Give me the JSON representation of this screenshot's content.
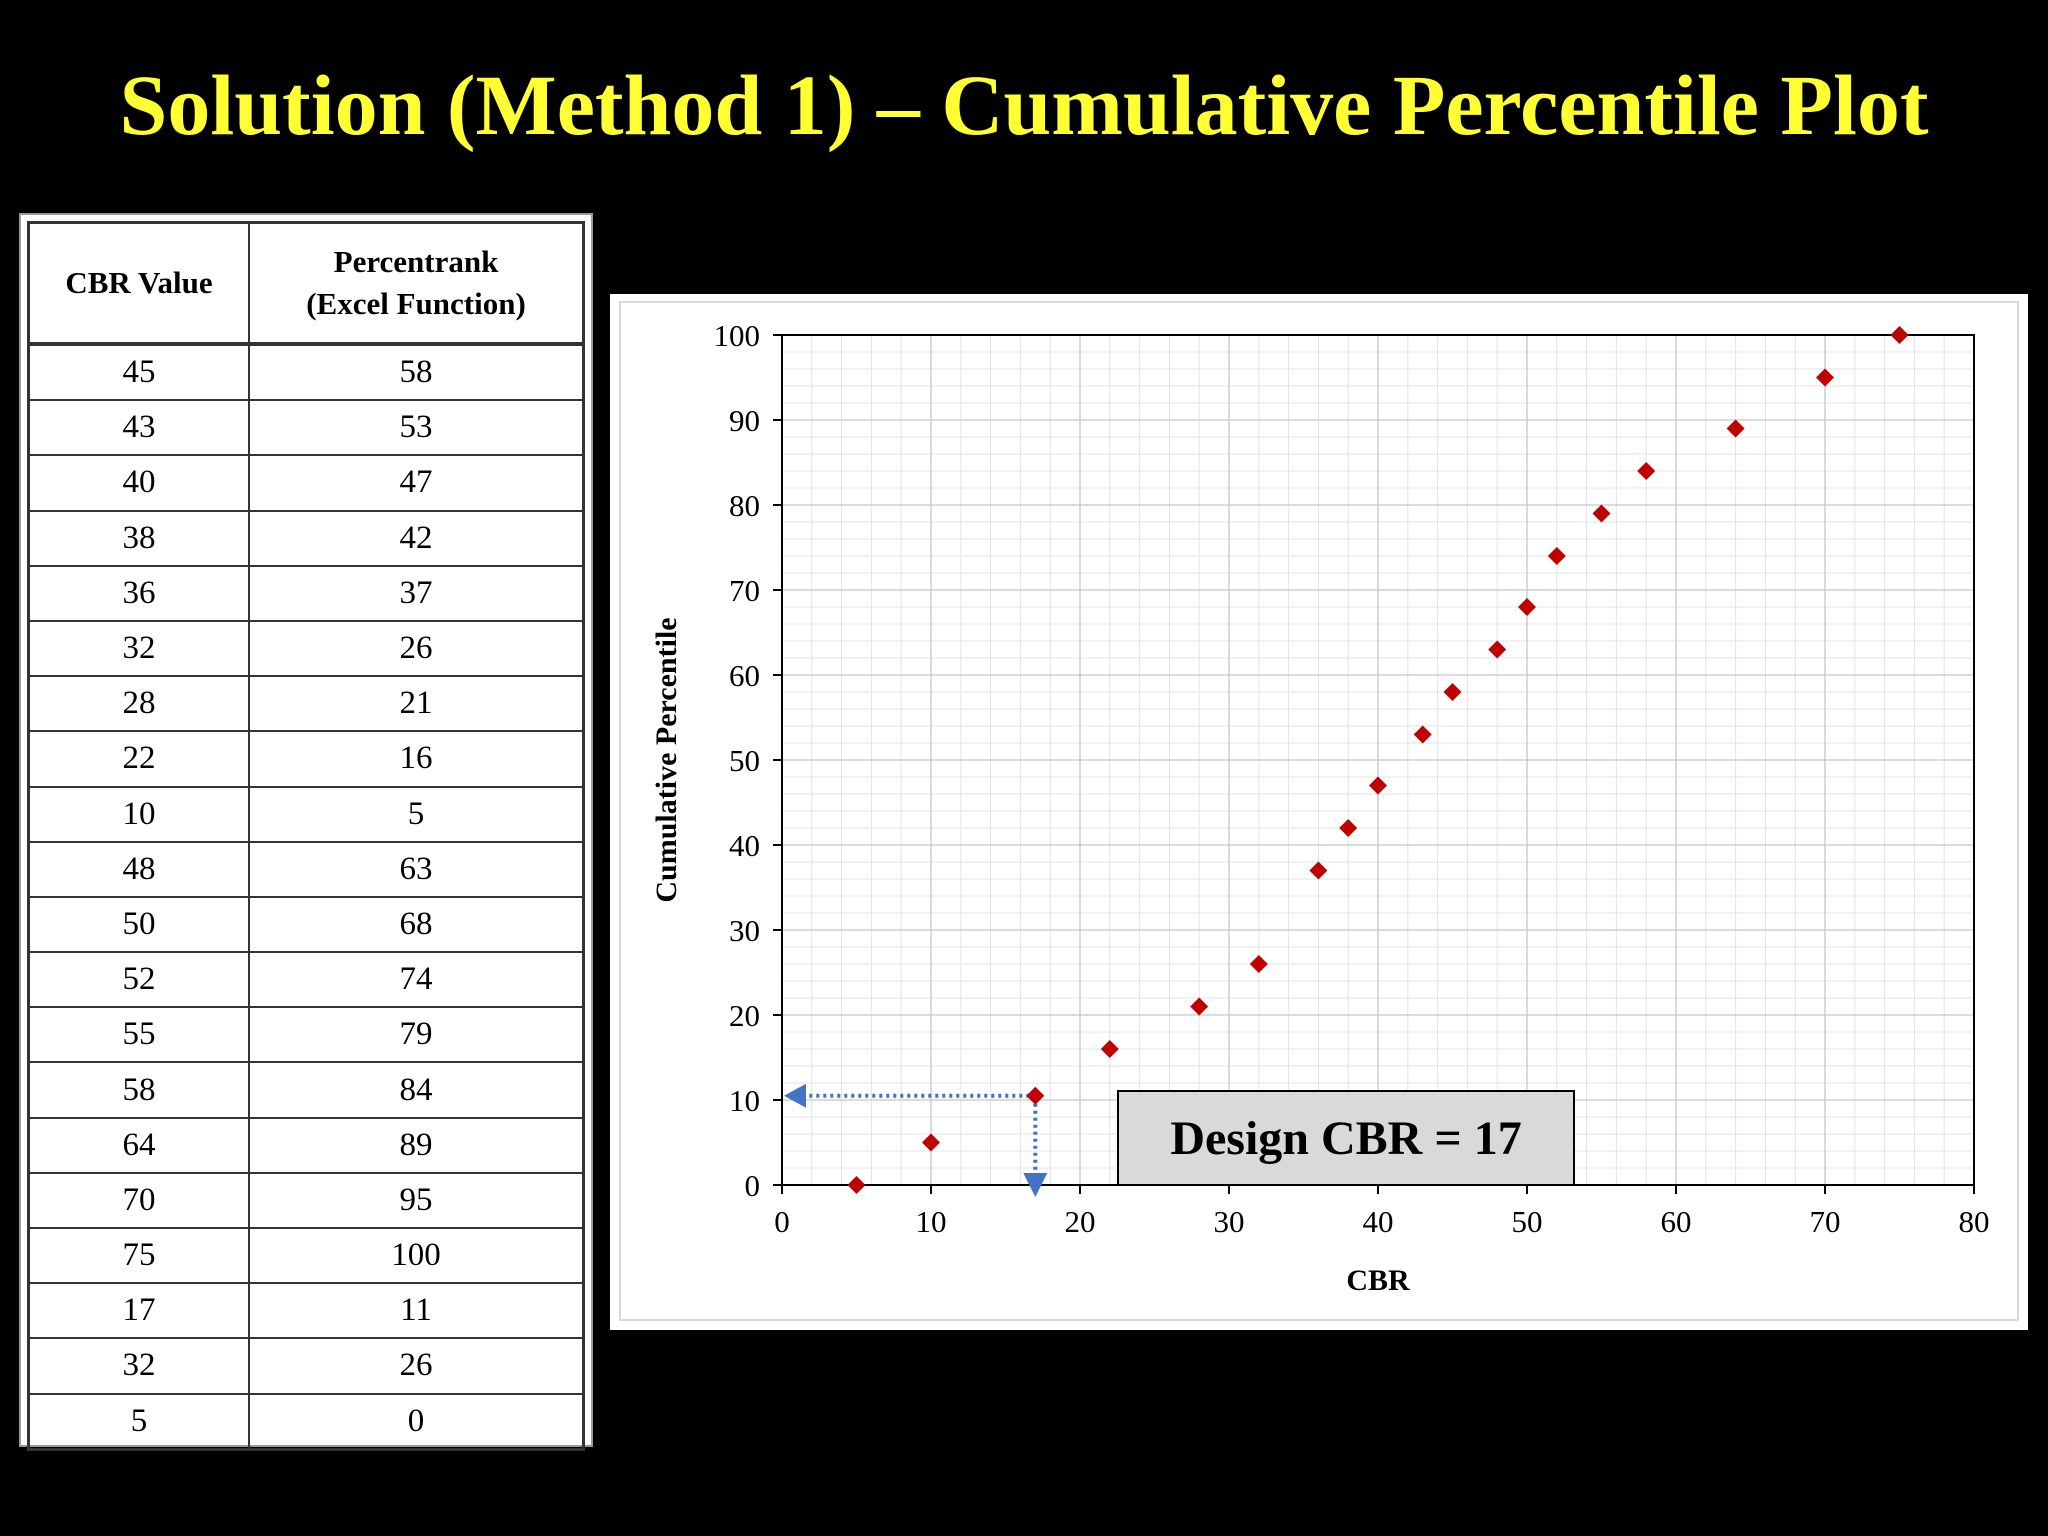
{
  "title": "Solution (Method 1) – Cumulative Percentile Plot",
  "table": {
    "headers": {
      "col1": "CBR Value",
      "col2_line1": "Percentrank",
      "col2_line2": "(Excel Function)"
    },
    "rows": [
      [
        "45",
        "58"
      ],
      [
        "43",
        "53"
      ],
      [
        "40",
        "47"
      ],
      [
        "38",
        "42"
      ],
      [
        "36",
        "37"
      ],
      [
        "32",
        "26"
      ],
      [
        "28",
        "21"
      ],
      [
        "22",
        "16"
      ],
      [
        "10",
        "5"
      ],
      [
        "48",
        "63"
      ],
      [
        "50",
        "68"
      ],
      [
        "52",
        "74"
      ],
      [
        "55",
        "79"
      ],
      [
        "58",
        "84"
      ],
      [
        "64",
        "89"
      ],
      [
        "70",
        "95"
      ],
      [
        "75",
        "100"
      ],
      [
        "17",
        "11"
      ],
      [
        "32",
        "26"
      ],
      [
        "5",
        "0"
      ]
    ]
  },
  "chart_data": {
    "type": "scatter",
    "xlabel": "CBR",
    "ylabel": "Cumulative Percentile",
    "xlim": [
      0,
      80
    ],
    "ylim": [
      0,
      100
    ],
    "xticks": [
      0,
      10,
      20,
      30,
      40,
      50,
      60,
      70,
      80
    ],
    "yticks": [
      0,
      10,
      20,
      30,
      40,
      50,
      60,
      70,
      80,
      90,
      100
    ],
    "grid": true,
    "marker": "diamond",
    "marker_color": "#c00000",
    "points": [
      {
        "x": 5,
        "y": 0
      },
      {
        "x": 10,
        "y": 5
      },
      {
        "x": 17,
        "y": 10.5
      },
      {
        "x": 22,
        "y": 16
      },
      {
        "x": 28,
        "y": 21
      },
      {
        "x": 32,
        "y": 26
      },
      {
        "x": 36,
        "y": 37
      },
      {
        "x": 38,
        "y": 42
      },
      {
        "x": 40,
        "y": 47
      },
      {
        "x": 43,
        "y": 53
      },
      {
        "x": 45,
        "y": 58
      },
      {
        "x": 48,
        "y": 63
      },
      {
        "x": 50,
        "y": 68
      },
      {
        "x": 52,
        "y": 74
      },
      {
        "x": 55,
        "y": 79
      },
      {
        "x": 58,
        "y": 84
      },
      {
        "x": 64,
        "y": 89
      },
      {
        "x": 70,
        "y": 95
      },
      {
        "x": 75,
        "y": 100
      }
    ],
    "guide": {
      "x": 17,
      "y": 10.5,
      "color": "#4472c4"
    },
    "annotation": "Design CBR = 17"
  }
}
